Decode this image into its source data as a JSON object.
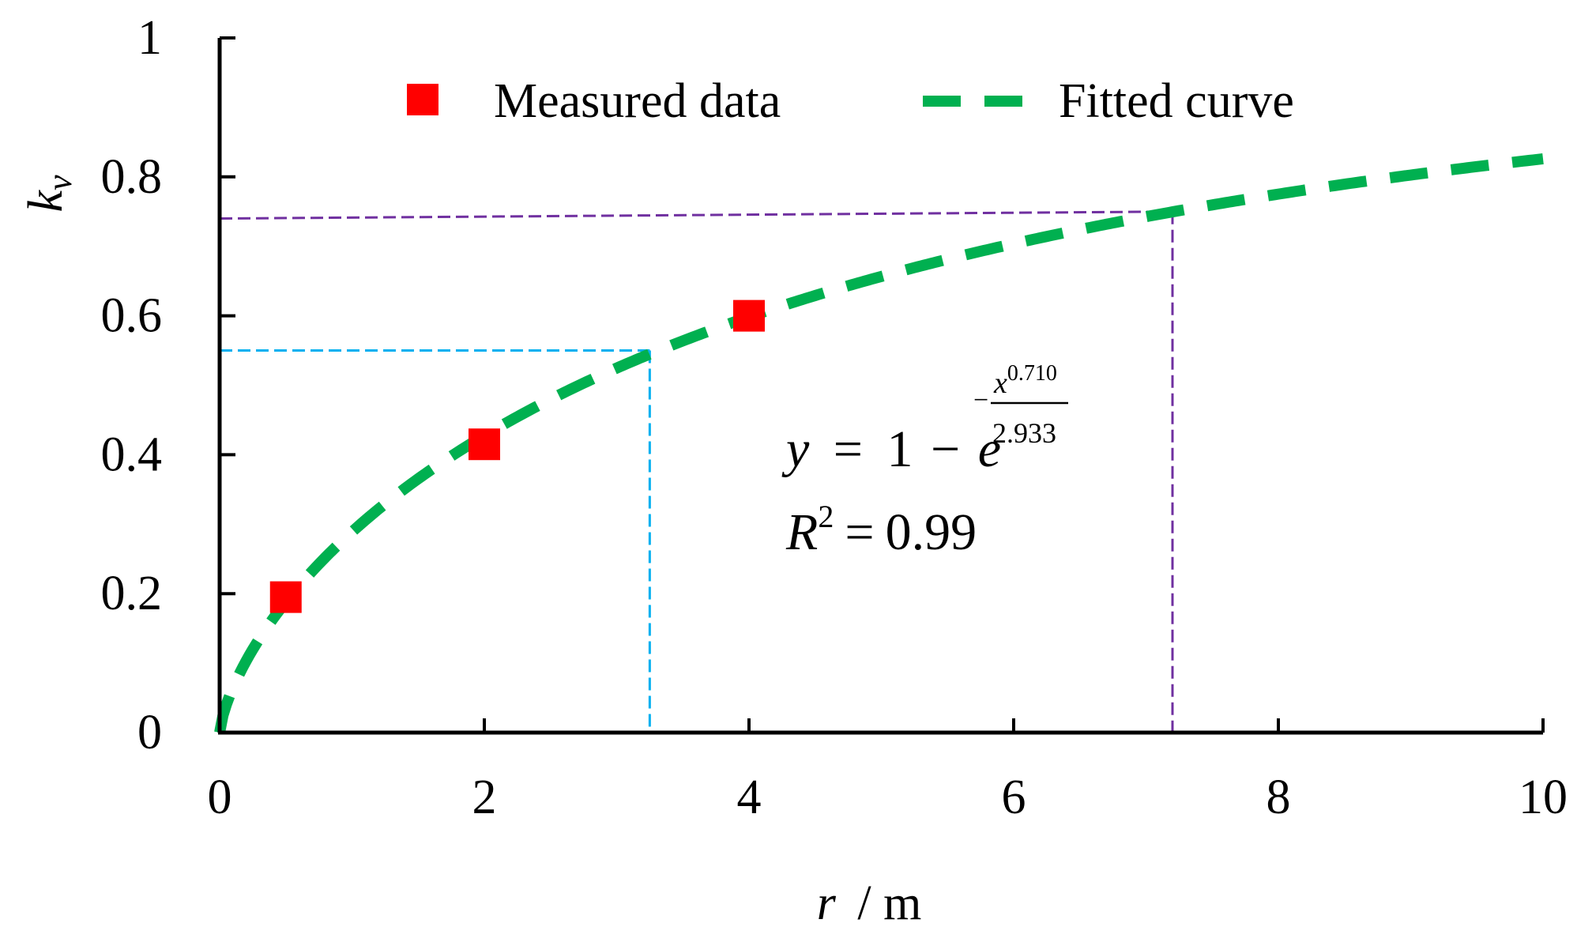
{
  "chart_data": {
    "type": "scatter",
    "title": "",
    "xlabel": "r / m",
    "xlabel_var": "r",
    "xlabel_unit": "/ m",
    "ylabel": "kv",
    "ylabel_var": "k",
    "ylabel_sub": "v",
    "xlim": [
      0,
      10
    ],
    "ylim": [
      0,
      1
    ],
    "x_ticks": [
      0,
      2,
      4,
      6,
      8,
      10
    ],
    "x_tick_labels": [
      "0",
      "2",
      "4",
      "6",
      "8",
      "10"
    ],
    "y_ticks": [
      0,
      0.2,
      0.4,
      0.6,
      0.8,
      1
    ],
    "y_tick_labels": [
      "0",
      "0.2",
      "0.4",
      "0.6",
      "0.8",
      "1"
    ],
    "grid": false,
    "legend_position": "top",
    "series": [
      {
        "name": "Measured data",
        "type": "scatter",
        "marker": "square",
        "color": "#ff0000",
        "x": [
          0.5,
          2,
          4
        ],
        "y": [
          0.195,
          0.415,
          0.6
        ]
      },
      {
        "name": "Fitted curve",
        "type": "line",
        "style": "dashed",
        "color": "#00b050",
        "formula": "y = 1 - exp(-x^0.710 / 2.933)",
        "exponent": 0.71,
        "denominator": 2.933,
        "x_range": [
          0,
          10
        ]
      }
    ],
    "reference_lines": [
      {
        "name": "ref-blue",
        "color": "#00b0f0",
        "x": 3.25,
        "y": 0.55
      },
      {
        "name": "ref-purple",
        "color": "#7030a0",
        "x": 7.2,
        "y": 0.75,
        "y_left": 0.74
      }
    ],
    "annotations": {
      "equation": {
        "y_var": "y",
        "equals": "=",
        "one": "1",
        "minus": "−",
        "base": "e",
        "exp_minus": "−",
        "exp_num_var": "x",
        "exp_num_pow": "0.710",
        "exp_den": "2.933"
      },
      "r_squared": {
        "var": "R",
        "pow": "2",
        "equals": "=",
        "value": "0.99"
      }
    }
  }
}
